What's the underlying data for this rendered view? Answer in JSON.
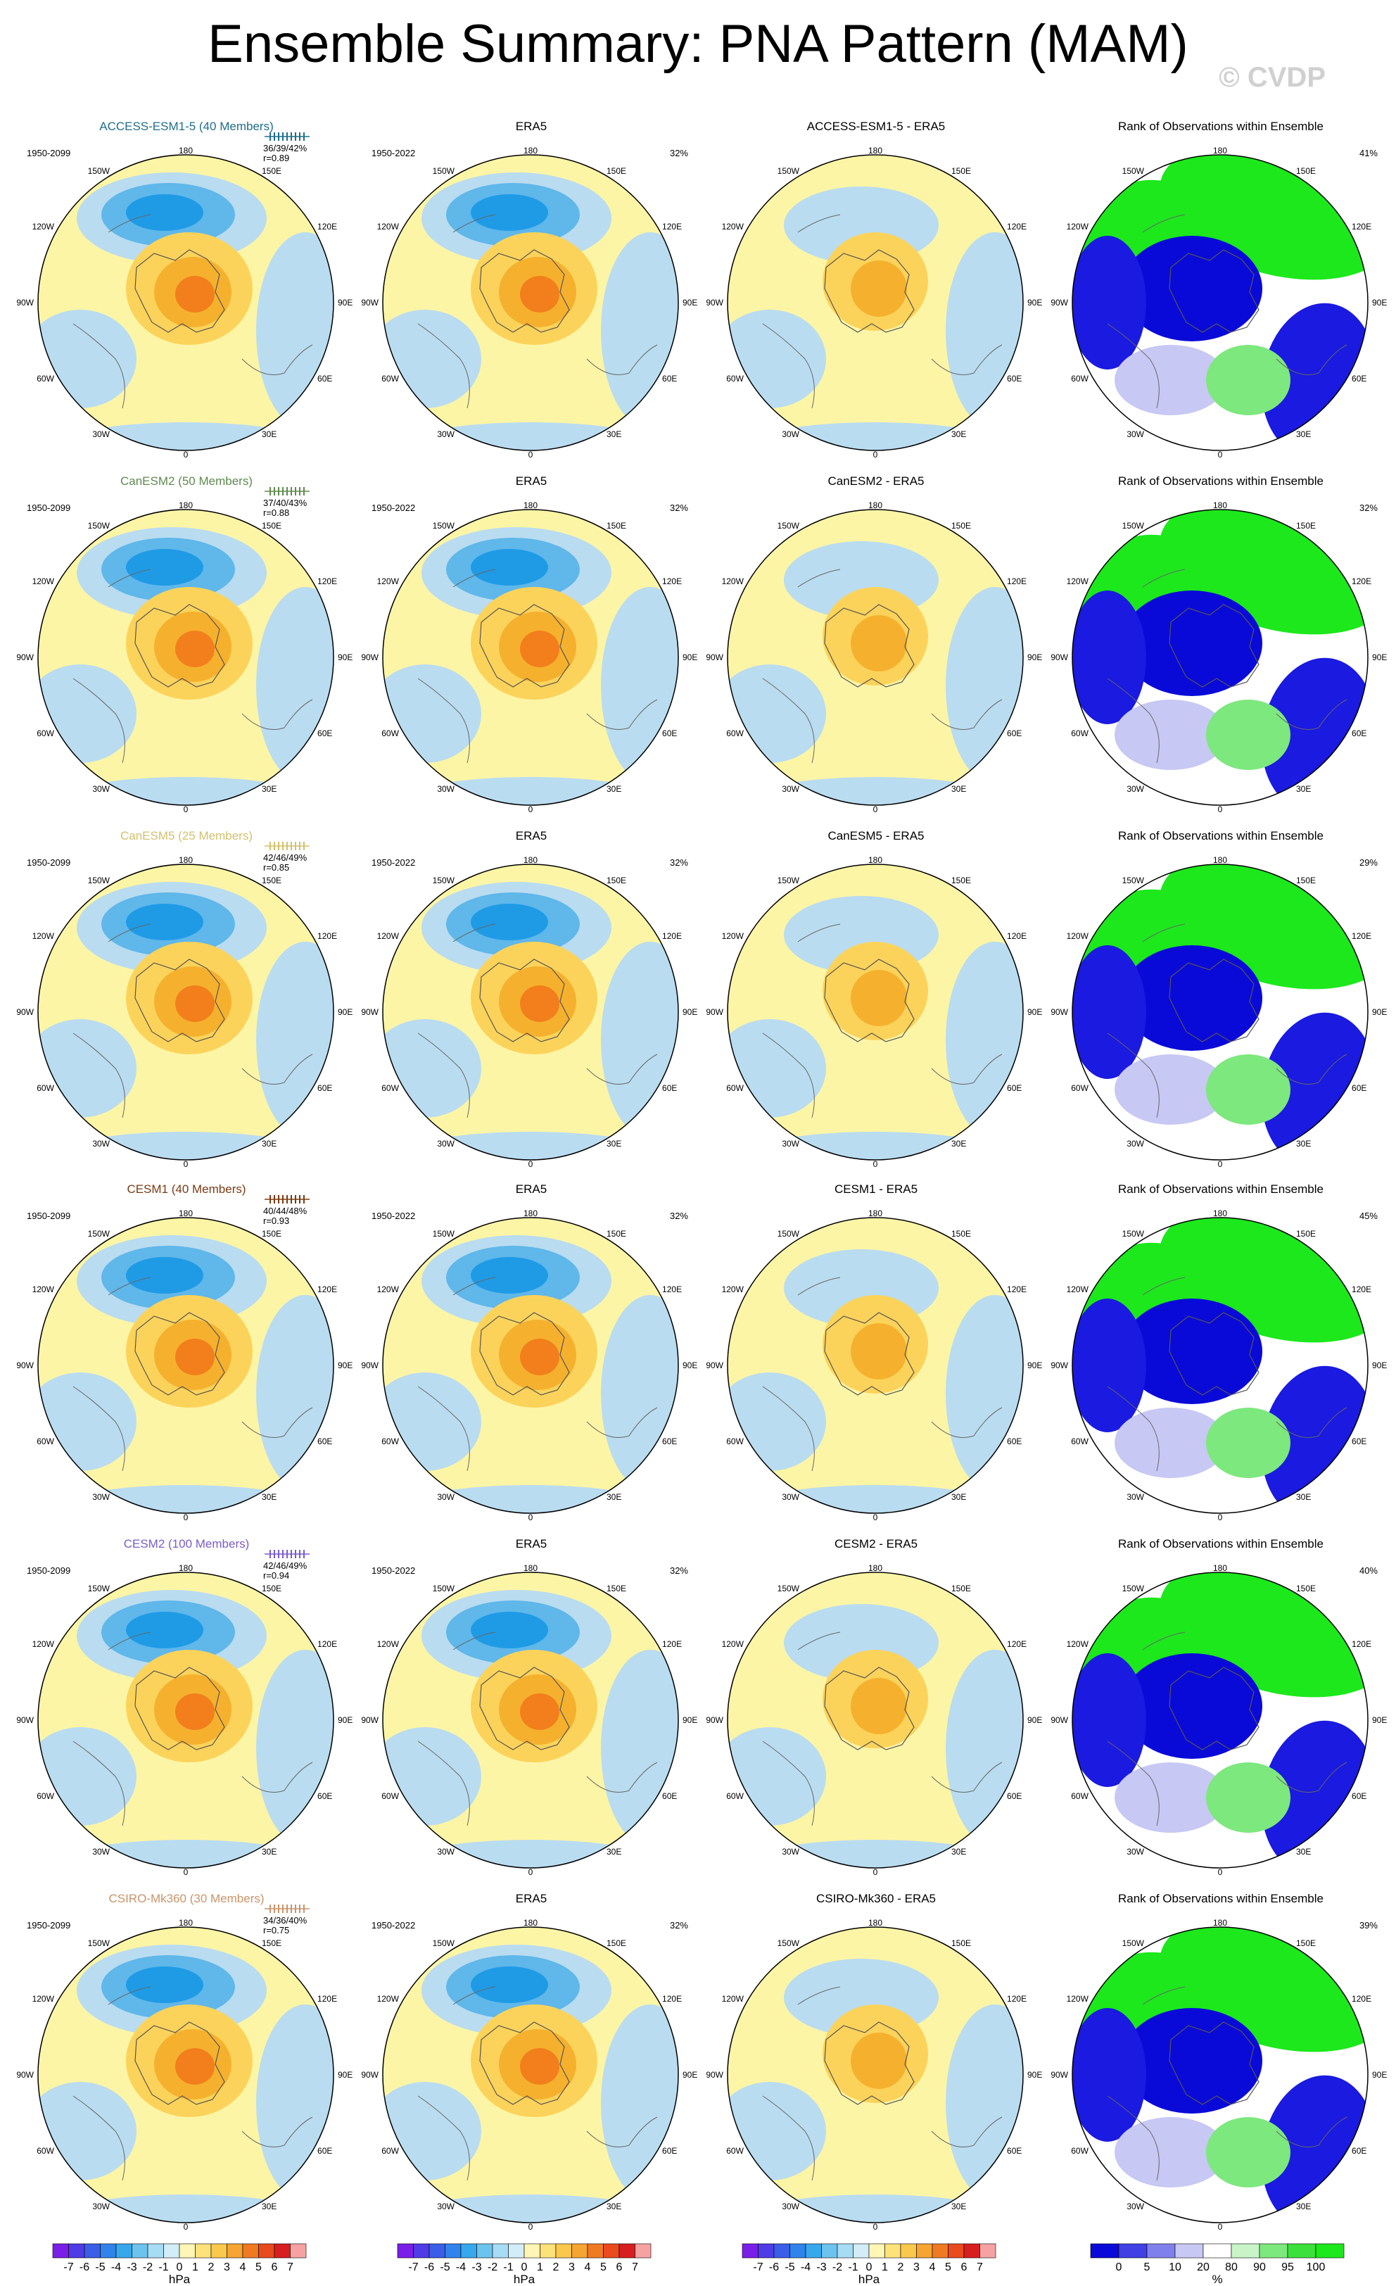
{
  "title": "Ensemble Summary: PNA Pattern (MAM)",
  "watermark": "© CVDP",
  "map_labels": [
    "180",
    "150E",
    "120E",
    "90E",
    "60E",
    "30E",
    "0",
    "30W",
    "60W",
    "90W",
    "120W",
    "150W"
  ],
  "obs_name": "ERA5",
  "obs_years": "1950-2022",
  "obs_pct": "32%",
  "rank_title": "Rank of Observations within Ensemble",
  "colorbars": {
    "hpa": {
      "labels": [
        "-7",
        "-6",
        "-5",
        "-4",
        "-3",
        "-2",
        "-1",
        "0",
        "1",
        "2",
        "3",
        "4",
        "5",
        "6",
        "7"
      ],
      "unit": "hPa"
    },
    "rank": {
      "labels": [
        "0",
        "5",
        "10",
        "20",
        "80",
        "90",
        "95",
        "100"
      ],
      "unit": "%"
    }
  },
  "chart_data": {
    "type": "heatmap",
    "rows": [
      {
        "model": "ACCESS-ESM1-5 (40 Members)",
        "color": "#1f6e8c",
        "years": "1950-2099",
        "stats": "36/39/42%",
        "r": "r=0.89",
        "diff_title": "ACCESS-ESM1-5 - ERA5",
        "rank_pct": "41%"
      },
      {
        "model": "CanESM2 (50 Members)",
        "color": "#5f8a4f",
        "years": "1950-2099",
        "stats": "37/40/43%",
        "r": "r=0.88",
        "diff_title": "CanESM2 - ERA5",
        "rank_pct": "32%"
      },
      {
        "model": "CanESM5 (25 Members)",
        "color": "#d2c16e",
        "years": "1950-2099",
        "stats": "42/46/49%",
        "r": "r=0.85",
        "diff_title": "CanESM5 - ERA5",
        "rank_pct": "29%"
      },
      {
        "model": "CESM1 (40 Members)",
        "color": "#7a3b12",
        "years": "1950-2099",
        "stats": "40/44/48%",
        "r": "r=0.93",
        "diff_title": "CESM1 - ERA5",
        "rank_pct": "45%"
      },
      {
        "model": "CESM2 (100 Members)",
        "color": "#7b5cc9",
        "years": "1950-2099",
        "stats": "42/46/49%",
        "r": "r=0.94",
        "diff_title": "CESM2 - ERA5",
        "rank_pct": "40%"
      },
      {
        "model": "CSIRO-Mk360 (30 Members)",
        "color": "#c9946a",
        "years": "1950-2099",
        "stats": "34/36/40%",
        "r": "r=0.75",
        "diff_title": "CSIRO-Mk360 - ERA5",
        "rank_pct": "39%"
      }
    ]
  }
}
